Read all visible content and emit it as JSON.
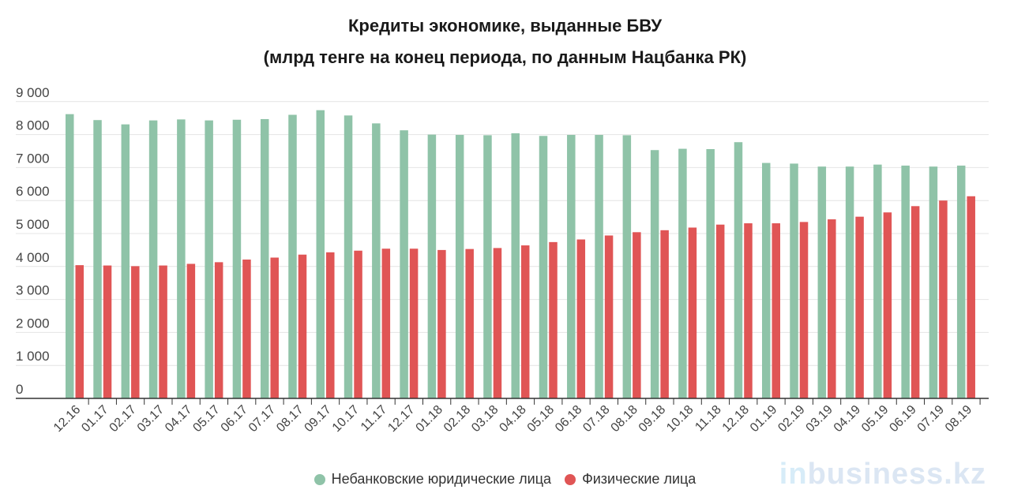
{
  "chart_data": {
    "type": "bar",
    "title": "Кредиты экономике, выданные БВУ",
    "subtitle": "(млрд тенге на конец периода, по данным Нацбанка РК)",
    "categories": [
      "12.16",
      "01.17",
      "02.17",
      "03.17",
      "04.17",
      "05.17",
      "06.17",
      "07.17",
      "08.17",
      "09.17",
      "10.17",
      "11.17",
      "12.17",
      "01.18",
      "02.18",
      "03.18",
      "04.18",
      "05.18",
      "06.18",
      "07.18",
      "08.18",
      "09.18",
      "10.18",
      "11.18",
      "12.18",
      "01.19",
      "02.19",
      "03.19",
      "04.19",
      "05.19",
      "06.19",
      "07.19",
      "08.19"
    ],
    "series": [
      {
        "name": "Небанковские юридические лица",
        "color": "#8fc3a8",
        "values": [
          8620,
          8440,
          8310,
          8430,
          8460,
          8430,
          8450,
          8470,
          8600,
          8740,
          8580,
          8340,
          8130,
          8000,
          7990,
          7980,
          8040,
          7960,
          7990,
          7990,
          7980,
          7530,
          7570,
          7560,
          7770,
          7140,
          7120,
          7030,
          7030,
          7090,
          7060,
          7030,
          7060
        ]
      },
      {
        "name": "Физические лица",
        "color": "#e05555",
        "values": [
          4040,
          4030,
          4010,
          4030,
          4080,
          4130,
          4210,
          4270,
          4360,
          4430,
          4480,
          4540,
          4540,
          4500,
          4530,
          4560,
          4640,
          4740,
          4820,
          4940,
          5040,
          5100,
          5180,
          5270,
          5310,
          5310,
          5350,
          5430,
          5510,
          5640,
          5830,
          6000,
          6130
        ]
      }
    ],
    "yticks": [
      "9 000",
      "8 000",
      "7 000",
      "6 000",
      "5 000",
      "4 000",
      "3 000",
      "2 000",
      "1 000",
      "0"
    ],
    "ylim": [
      0,
      9300
    ],
    "grid": true,
    "legend": "bottom-center"
  },
  "watermark": {
    "prefix": "in",
    "rest": "business.kz"
  }
}
